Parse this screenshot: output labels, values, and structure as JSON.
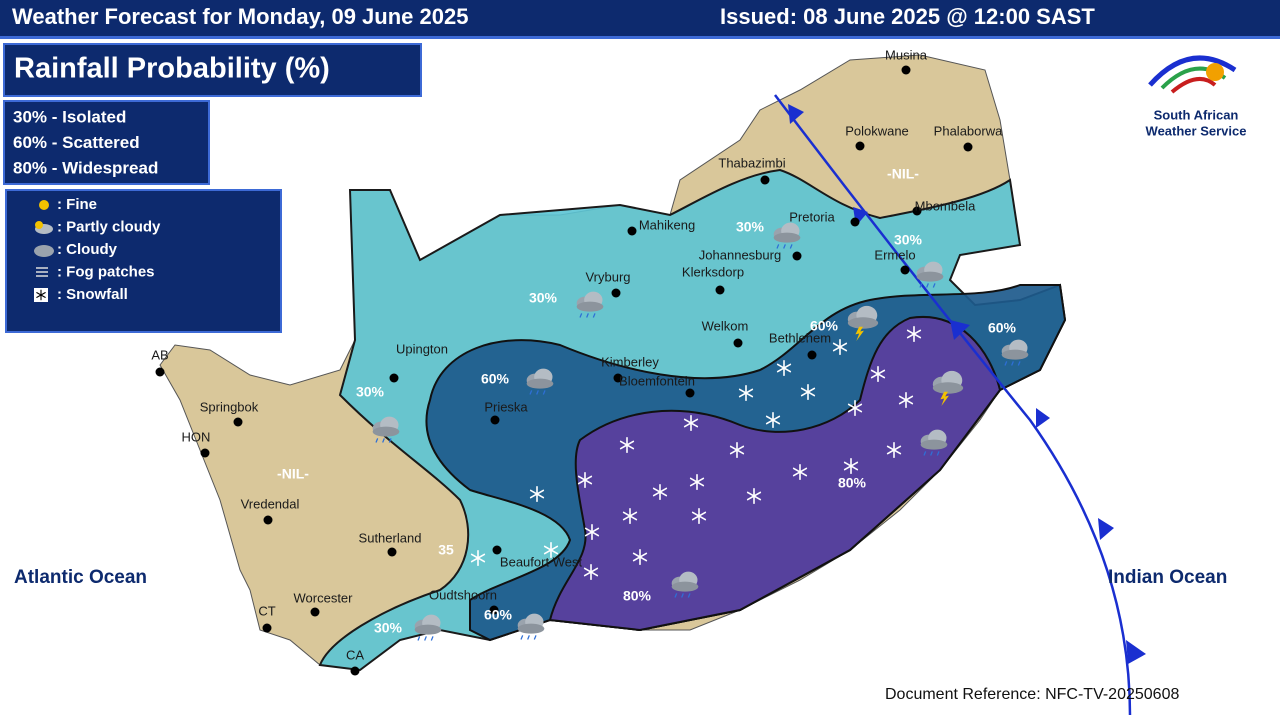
{
  "header": {
    "title": "Weather Forecast for Monday, 09 June 2025",
    "issued": "Issued: 08 June 2025 @ 12:00 SAST"
  },
  "panel_title": "Rainfall Probability (%)",
  "probability_legend": [
    "30% - Isolated",
    "60% - Scattered",
    "80% - Widespread"
  ],
  "weather_legend": [
    ": Fine",
    ": Partly cloudy",
    ": Cloudy",
    ": Fog patches",
    ": Snowfall"
  ],
  "logo": [
    "South African",
    "Weather Service"
  ],
  "towns": [
    "Musina",
    "Polokwane",
    "Phalaborwa",
    "Thabazimbi",
    "Mbombela",
    "Mahikeng",
    "Pretoria",
    "Johannesburg",
    "Ermelo",
    "Klerksdorp",
    "Vryburg",
    "Welkom",
    "Bethlehem",
    "Kimberley",
    "Bloemfontein",
    "Upington",
    "Prieska",
    "AB",
    "Springbok",
    "HON",
    "Vredendal",
    "Sutherland",
    "Worcester",
    "CT",
    "CA",
    "Oudtshoorn",
    "Beaufort West"
  ],
  "zone_labels": [
    "-NIL-",
    "-NIL-",
    "30%",
    "30%",
    "30%",
    "30%",
    "30%",
    "60%",
    "60%",
    "60%",
    "60%",
    "80%",
    "80%",
    "35"
  ],
  "oceans": [
    "Atlantic Ocean",
    "Indian Ocean"
  ],
  "document_reference": "Document Reference: NFC-TV-20250608"
}
